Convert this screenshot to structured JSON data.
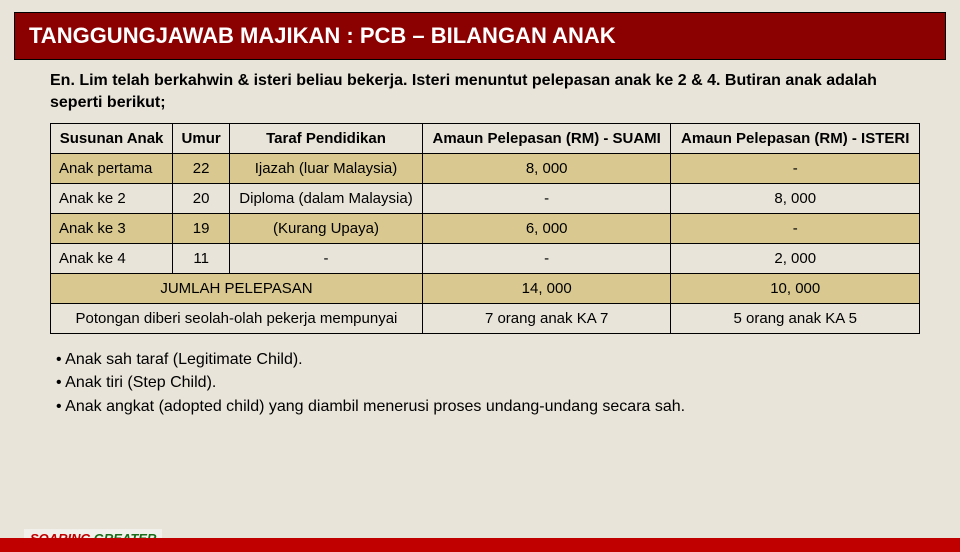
{
  "title": "TANGGUNGJAWAB MAJIKAN : PCB – BILANGAN ANAK",
  "intro": "En. Lim telah berkahwin & isteri beliau bekerja. Isteri menuntut pelepasan anak ke 2 & 4. Butiran anak adalah seperti berikut;",
  "headers": {
    "c0": "Susunan Anak",
    "c1": "Umur",
    "c2": "Taraf Pendidikan",
    "c3": "Amaun Pelepasan (RM) - SUAMI",
    "c4": "Amaun Pelepasan (RM) - ISTERI"
  },
  "rows": [
    {
      "c0": "Anak pertama",
      "c1": "22",
      "c2": "Ijazah (luar Malaysia)",
      "c3": "8, 000",
      "c4": "-"
    },
    {
      "c0": "Anak ke 2",
      "c1": "20",
      "c2": "Diploma (dalam Malaysia)",
      "c3": "-",
      "c4": "8, 000"
    },
    {
      "c0": "Anak ke 3",
      "c1": "19",
      "c2": "(Kurang Upaya)",
      "c3": "6, 000",
      "c4": "-"
    },
    {
      "c0": "Anak ke 4",
      "c1": "11",
      "c2": "-",
      "c3": "-",
      "c4": "2, 000"
    }
  ],
  "sum": {
    "label": "JUMLAH PELEPASAN",
    "c3": "14, 000",
    "c4": "10, 000"
  },
  "equiv": {
    "label": "Potongan diberi seolah-olah pekerja mempunyai",
    "c3": "7 orang anak KA 7",
    "c4": "5 orang anak KA 5"
  },
  "bullets": [
    "Anak sah taraf (Legitimate Child).",
    "Anak tiri (Step Child).",
    "Anak angkat (adopted child) yang diambil menerusi proses undang-undang secara sah."
  ],
  "logo": {
    "a": "SOARING",
    "b": "GREATER"
  },
  "colors": {
    "title_bg": "#8b0000",
    "body_bg": "#e8e4d9",
    "row_alt": "#d9c990",
    "bar": "#c00000"
  }
}
